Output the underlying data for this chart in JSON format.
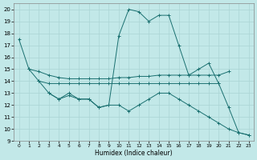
{
  "xlabel": "Humidex (Indice chaleur)",
  "xlim": [
    -0.5,
    23.5
  ],
  "ylim": [
    9,
    20.5
  ],
  "yticks": [
    9,
    10,
    11,
    12,
    13,
    14,
    15,
    16,
    17,
    18,
    19,
    20
  ],
  "xticks": [
    0,
    1,
    2,
    3,
    4,
    5,
    6,
    7,
    8,
    9,
    10,
    11,
    12,
    13,
    14,
    15,
    16,
    17,
    18,
    19,
    20,
    21,
    22,
    23
  ],
  "background_color": "#c2e8e8",
  "grid_color": "#aad4d4",
  "line_color": "#1a7070",
  "lines": [
    {
      "x": [
        0,
        1,
        2,
        3,
        4,
        5,
        6,
        7,
        8,
        9,
        10,
        11,
        12,
        13,
        14,
        15,
        16,
        17,
        18,
        19,
        20,
        21,
        22,
        23
      ],
      "y": [
        17.5,
        15.0,
        14.0,
        13.0,
        12.5,
        13.0,
        12.5,
        12.5,
        11.8,
        12.0,
        17.8,
        20.0,
        19.8,
        19.0,
        19.5,
        19.5,
        17.0,
        14.5,
        15.0,
        15.5,
        13.8,
        11.8,
        9.7,
        9.5
      ]
    },
    {
      "x": [
        1,
        2,
        3,
        4,
        5,
        6,
        7,
        8,
        9,
        10,
        11,
        12,
        13,
        14,
        15,
        16,
        17,
        18,
        19,
        20,
        21
      ],
      "y": [
        15.0,
        14.8,
        14.5,
        14.3,
        14.2,
        14.2,
        14.2,
        14.2,
        14.2,
        14.3,
        14.3,
        14.4,
        14.4,
        14.5,
        14.5,
        14.5,
        14.5,
        14.5,
        14.5,
        14.5,
        14.8
      ]
    },
    {
      "x": [
        2,
        3,
        4,
        5,
        6,
        7,
        8,
        9,
        10,
        11,
        12,
        13,
        14,
        15,
        16,
        17,
        18,
        19,
        20
      ],
      "y": [
        14.0,
        13.8,
        13.8,
        13.8,
        13.8,
        13.8,
        13.8,
        13.8,
        13.8,
        13.8,
        13.8,
        13.8,
        13.8,
        13.8,
        13.8,
        13.8,
        13.8,
        13.8,
        13.8
      ]
    },
    {
      "x": [
        3,
        4,
        5,
        6,
        7,
        8,
        9,
        10,
        11,
        12,
        13,
        14,
        15,
        16,
        17,
        18,
        19,
        20,
        21,
        22,
        23
      ],
      "y": [
        13.0,
        12.5,
        12.8,
        12.5,
        12.5,
        11.8,
        12.0,
        12.0,
        11.5,
        12.0,
        12.5,
        13.0,
        13.0,
        12.5,
        12.0,
        11.5,
        11.0,
        10.5,
        10.0,
        9.7,
        9.5
      ]
    }
  ]
}
